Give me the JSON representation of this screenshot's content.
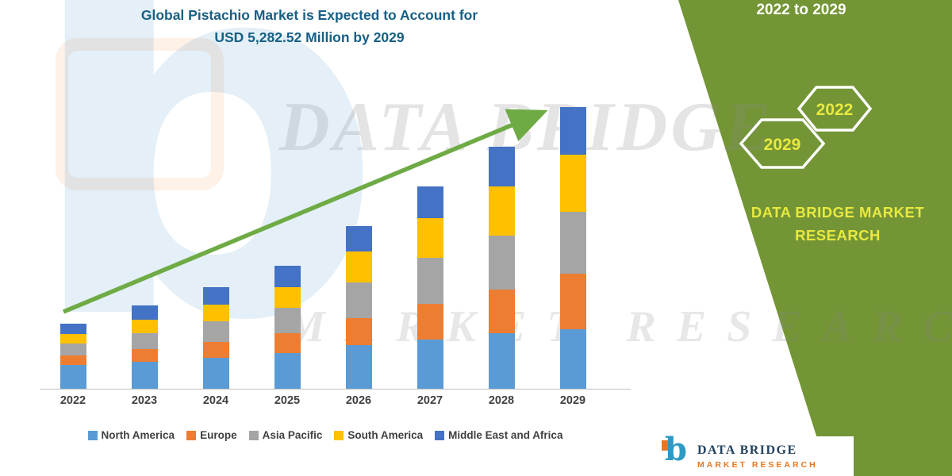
{
  "title": {
    "line1": "Global Pistachio Market is Expected to Account for",
    "line2": "USD 5,282.52 Million by 2029"
  },
  "side_panel": {
    "range_text": "2022 to 2029",
    "hexagons": [
      {
        "label": "2029"
      },
      {
        "label": "2022"
      }
    ],
    "brand_line1": "DATA BRIDGE MARKET",
    "brand_line2": "RESEARCH",
    "background_color": "#739536",
    "accent_text_color": "#E9E93F"
  },
  "watermark": {
    "letter": "b",
    "line1": "DATA BRIDGE",
    "line2": "MARKET RESEARCH"
  },
  "footer_logo": {
    "icon": "b",
    "title": "DATA BRIDGE",
    "subtitle": "MARKET RESEARCH"
  },
  "chart_data": {
    "type": "bar",
    "stacked": true,
    "title": "Global Pistachio Market is Expected to Account for USD 5,282.52 Million by 2029",
    "unit": "USD Million",
    "categories": [
      "2022",
      "2023",
      "2024",
      "2025",
      "2026",
      "2027",
      "2028",
      "2029"
    ],
    "series": [
      {
        "name": "North America",
        "color": "#5B9BD5",
        "values": [
          445,
          505,
          580,
          670,
          820,
          925,
          1040,
          1115
        ]
      },
      {
        "name": "Europe",
        "color": "#ED7D31",
        "values": [
          180,
          240,
          300,
          370,
          505,
          670,
          820,
          1040
        ]
      },
      {
        "name": "Asia Pacific",
        "color": "#A5A5A5",
        "values": [
          225,
          300,
          385,
          475,
          670,
          865,
          1010,
          1160
        ]
      },
      {
        "name": "South America",
        "color": "#FFC000",
        "values": [
          180,
          255,
          310,
          385,
          580,
          745,
          925,
          1070
        ]
      },
      {
        "name": "Middle East and Africa",
        "color": "#4472C4",
        "values": [
          190,
          270,
          325,
          400,
          475,
          595,
          745,
          897.52
        ]
      }
    ],
    "totals": [
      1220,
      1570,
      1900,
      2300,
      3050,
      3800,
      4540,
      5282.52
    ],
    "ylim": [
      0,
      5600
    ],
    "grid": false,
    "legend_position": "bottom",
    "trend_arrow": true,
    "trend_arrow_color": "#6FAB45"
  }
}
